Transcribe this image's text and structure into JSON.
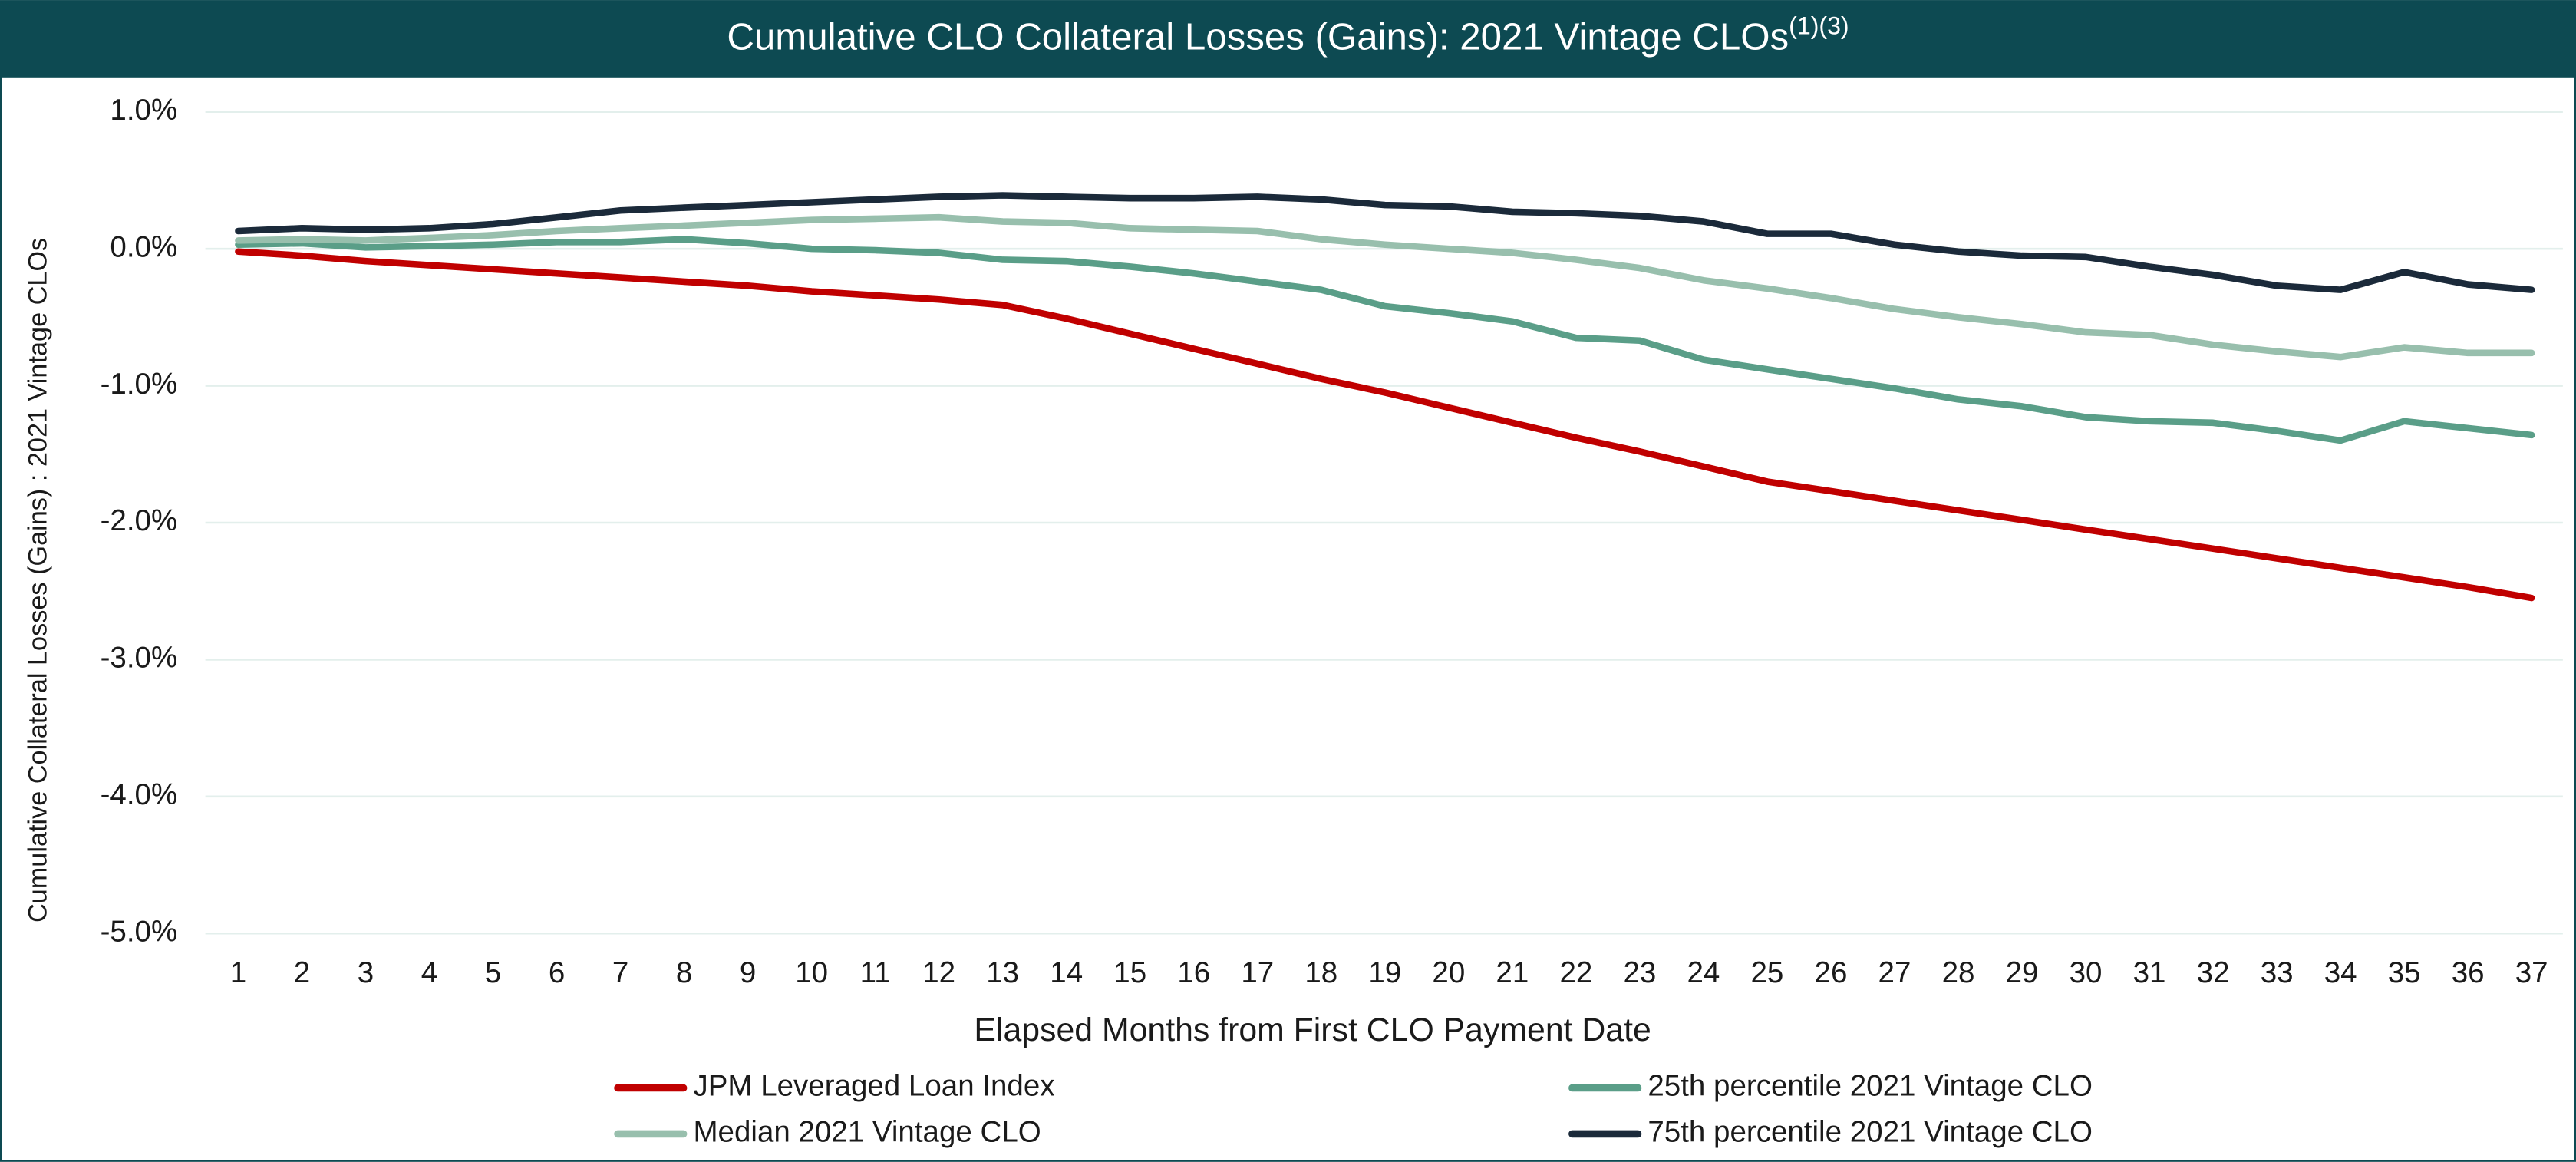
{
  "chart_data": {
    "type": "line",
    "title": "Cumulative CLO Collateral Losses (Gains): 2021 Vintage CLOs",
    "title_note": "(1)(3)",
    "x_label": "Elapsed Months from First CLO Payment Date",
    "y_label": "Cumulative Collateral Losses (Gains) : 2021 Vintage CLOs",
    "categories": [
      1,
      2,
      3,
      4,
      5,
      6,
      7,
      8,
      9,
      10,
      11,
      12,
      13,
      14,
      15,
      16,
      17,
      18,
      19,
      20,
      21,
      22,
      23,
      24,
      25,
      26,
      27,
      28,
      29,
      30,
      31,
      32,
      33,
      34,
      35,
      36,
      37
    ],
    "ylim": [
      -5,
      1
    ],
    "yticks": [
      {
        "value": 1,
        "label": "1.0%"
      },
      {
        "value": 0,
        "label": "0.0%"
      },
      {
        "value": -1,
        "label": "-1.0%"
      },
      {
        "value": -2,
        "label": "-2.0%"
      },
      {
        "value": -3,
        "label": "-3.0%"
      },
      {
        "value": -4,
        "label": "-4.0%"
      },
      {
        "value": -5,
        "label": "-5.0%"
      }
    ],
    "grid": true,
    "series": [
      {
        "name": "JPM Leveraged Loan Index",
        "color": "#c00000",
        "values": [
          -0.02,
          -0.05,
          -0.09,
          -0.12,
          -0.15,
          -0.18,
          -0.21,
          -0.24,
          -0.27,
          -0.31,
          -0.34,
          -0.37,
          -0.41,
          -0.51,
          -0.62,
          -0.73,
          -0.84,
          -0.95,
          -1.05,
          -1.16,
          -1.27,
          -1.38,
          -1.48,
          -1.59,
          -1.7,
          -1.77,
          -1.84,
          -1.91,
          -1.98,
          -2.05,
          -2.12,
          -2.19,
          -2.26,
          -2.33,
          -2.4,
          -2.47,
          -2.55
        ]
      },
      {
        "name": "25th percentile 2021 Vintage CLO",
        "color": "#5a9e88",
        "values": [
          0.03,
          0.04,
          0.01,
          0.02,
          0.03,
          0.05,
          0.05,
          0.07,
          0.04,
          0.0,
          -0.01,
          -0.03,
          -0.08,
          -0.09,
          -0.13,
          -0.18,
          -0.24,
          -0.3,
          -0.42,
          -0.47,
          -0.53,
          -0.65,
          -0.67,
          -0.81,
          -0.88,
          -0.95,
          -1.02,
          -1.1,
          -1.15,
          -1.23,
          -1.26,
          -1.27,
          -1.33,
          -1.4,
          -1.26,
          -1.31,
          -1.36
        ]
      },
      {
        "name": "Median 2021 Vintage CLO",
        "color": "#98bfad",
        "values": [
          0.06,
          0.07,
          0.06,
          0.08,
          0.1,
          0.13,
          0.15,
          0.17,
          0.19,
          0.21,
          0.22,
          0.23,
          0.2,
          0.19,
          0.15,
          0.14,
          0.13,
          0.07,
          0.03,
          0.0,
          -0.03,
          -0.08,
          -0.14,
          -0.23,
          -0.29,
          -0.36,
          -0.44,
          -0.5,
          -0.55,
          -0.61,
          -0.63,
          -0.7,
          -0.75,
          -0.79,
          -0.72,
          -0.76,
          -0.76
        ]
      },
      {
        "name": "75th percentile 2021 Vintage CLO",
        "color": "#1b2a3a",
        "values": [
          0.13,
          0.15,
          0.14,
          0.15,
          0.18,
          0.23,
          0.28,
          0.3,
          0.32,
          0.34,
          0.36,
          0.38,
          0.39,
          0.38,
          0.37,
          0.37,
          0.38,
          0.36,
          0.32,
          0.31,
          0.27,
          0.26,
          0.24,
          0.2,
          0.11,
          0.11,
          0.03,
          -0.02,
          -0.05,
          -0.06,
          -0.13,
          -0.19,
          -0.27,
          -0.3,
          -0.17,
          -0.26,
          -0.3
        ]
      }
    ]
  }
}
